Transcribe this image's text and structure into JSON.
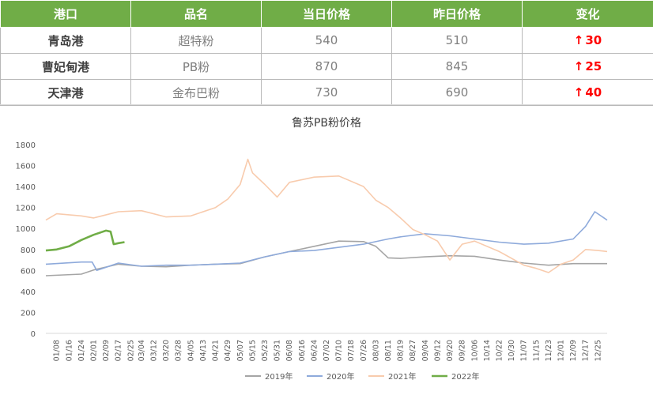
{
  "table": {
    "headers": [
      "港口",
      "品名",
      "当日价格",
      "昨日价格",
      "变化"
    ],
    "rows": [
      {
        "port": "青岛港",
        "product": "超特粉",
        "today": "540",
        "yesterday": "510",
        "change": "30"
      },
      {
        "port": "曹妃甸港",
        "product": "PB粉",
        "today": "870",
        "yesterday": "845",
        "change": "25"
      },
      {
        "port": "天津港",
        "product": "金布巴粉",
        "today": "730",
        "yesterday": "690",
        "change": "40"
      }
    ],
    "change_arrow": "↑"
  },
  "colors": {
    "header_bg": "#70ad47",
    "change_up": "#ff0000",
    "series_2019": "#a5a5a5",
    "series_2020": "#8eaadb",
    "series_2021": "#f8cbad",
    "series_2022": "#70ad47"
  },
  "chart_data": {
    "type": "line",
    "title": "鲁苏PB粉价格",
    "xlabel": "",
    "ylabel": "",
    "ylim": [
      0,
      1800
    ],
    "yticks": [
      0,
      200,
      400,
      600,
      800,
      1000,
      1200,
      1400,
      1600,
      1800
    ],
    "xticks": [
      "01/08",
      "01/16",
      "01/24",
      "02/01",
      "02/09",
      "02/17",
      "02/25",
      "03/04",
      "03/12",
      "03/20",
      "03/28",
      "04/05",
      "04/13",
      "04/21",
      "04/29",
      "05/07",
      "05/15",
      "05/23",
      "05/31",
      "06/08",
      "06/16",
      "06/24",
      "07/02",
      "07/10",
      "07/18",
      "07/26",
      "08/03",
      "08/11",
      "08/19",
      "08/27",
      "09/04",
      "09/12",
      "09/20",
      "09/28",
      "10/06",
      "10/14",
      "10/22",
      "10/30",
      "11/07",
      "11/15",
      "11/23",
      "12/01",
      "12/09",
      "12/17",
      "12/25"
    ],
    "grid": false,
    "legend": "bottom",
    "series": [
      {
        "name": "2019年",
        "points": [
          [
            "01/01",
            550
          ],
          [
            "01/24",
            565
          ],
          [
            "02/01",
            605
          ],
          [
            "02/17",
            660
          ],
          [
            "03/04",
            640
          ],
          [
            "03/20",
            635
          ],
          [
            "04/05",
            650
          ],
          [
            "04/21",
            660
          ],
          [
            "05/07",
            665
          ],
          [
            "05/23",
            730
          ],
          [
            "06/08",
            780
          ],
          [
            "06/24",
            830
          ],
          [
            "07/10",
            880
          ],
          [
            "07/26",
            875
          ],
          [
            "08/03",
            830
          ],
          [
            "08/11",
            720
          ],
          [
            "08/19",
            715
          ],
          [
            "09/04",
            730
          ],
          [
            "09/20",
            740
          ],
          [
            "10/06",
            735
          ],
          [
            "10/22",
            700
          ],
          [
            "11/07",
            670
          ],
          [
            "11/23",
            650
          ],
          [
            "12/09",
            665
          ],
          [
            "12/31",
            665
          ]
        ]
      },
      {
        "name": "2020年",
        "points": [
          [
            "01/01",
            660
          ],
          [
            "01/24",
            680
          ],
          [
            "01/31",
            680
          ],
          [
            "02/03",
            600
          ],
          [
            "02/17",
            670
          ],
          [
            "03/04",
            640
          ],
          [
            "03/20",
            650
          ],
          [
            "04/05",
            650
          ],
          [
            "04/21",
            660
          ],
          [
            "05/07",
            670
          ],
          [
            "05/23",
            730
          ],
          [
            "06/08",
            780
          ],
          [
            "06/24",
            790
          ],
          [
            "07/10",
            820
          ],
          [
            "07/26",
            850
          ],
          [
            "08/11",
            900
          ],
          [
            "08/19",
            920
          ],
          [
            "09/04",
            950
          ],
          [
            "09/20",
            930
          ],
          [
            "10/06",
            900
          ],
          [
            "10/22",
            870
          ],
          [
            "11/07",
            850
          ],
          [
            "11/23",
            860
          ],
          [
            "12/09",
            900
          ],
          [
            "12/17",
            1020
          ],
          [
            "12/23",
            1160
          ],
          [
            "12/31",
            1080
          ]
        ]
      },
      {
        "name": "2021年",
        "points": [
          [
            "01/01",
            1080
          ],
          [
            "01/08",
            1140
          ],
          [
            "01/24",
            1120
          ],
          [
            "02/01",
            1100
          ],
          [
            "02/17",
            1160
          ],
          [
            "03/04",
            1170
          ],
          [
            "03/20",
            1110
          ],
          [
            "04/05",
            1120
          ],
          [
            "04/21",
            1200
          ],
          [
            "04/29",
            1280
          ],
          [
            "05/07",
            1420
          ],
          [
            "05/12",
            1660
          ],
          [
            "05/15",
            1530
          ],
          [
            "05/23",
            1420
          ],
          [
            "05/31",
            1300
          ],
          [
            "06/08",
            1440
          ],
          [
            "06/24",
            1490
          ],
          [
            "07/10",
            1500
          ],
          [
            "07/26",
            1400
          ],
          [
            "08/03",
            1270
          ],
          [
            "08/11",
            1200
          ],
          [
            "08/19",
            1100
          ],
          [
            "08/27",
            990
          ],
          [
            "09/04",
            940
          ],
          [
            "09/12",
            880
          ],
          [
            "09/20",
            700
          ],
          [
            "09/28",
            850
          ],
          [
            "10/06",
            880
          ],
          [
            "10/22",
            780
          ],
          [
            "11/07",
            650
          ],
          [
            "11/15",
            620
          ],
          [
            "11/23",
            580
          ],
          [
            "12/01",
            660
          ],
          [
            "12/09",
            700
          ],
          [
            "12/17",
            800
          ],
          [
            "12/25",
            790
          ],
          [
            "12/31",
            780
          ]
        ]
      },
      {
        "name": "2022年",
        "points": [
          [
            "01/01",
            790
          ],
          [
            "01/08",
            800
          ],
          [
            "01/16",
            830
          ],
          [
            "01/24",
            890
          ],
          [
            "02/01",
            940
          ],
          [
            "02/09",
            980
          ],
          [
            "02/12",
            970
          ],
          [
            "02/14",
            850
          ],
          [
            "02/17",
            860
          ],
          [
            "02/21",
            870
          ]
        ]
      }
    ]
  }
}
